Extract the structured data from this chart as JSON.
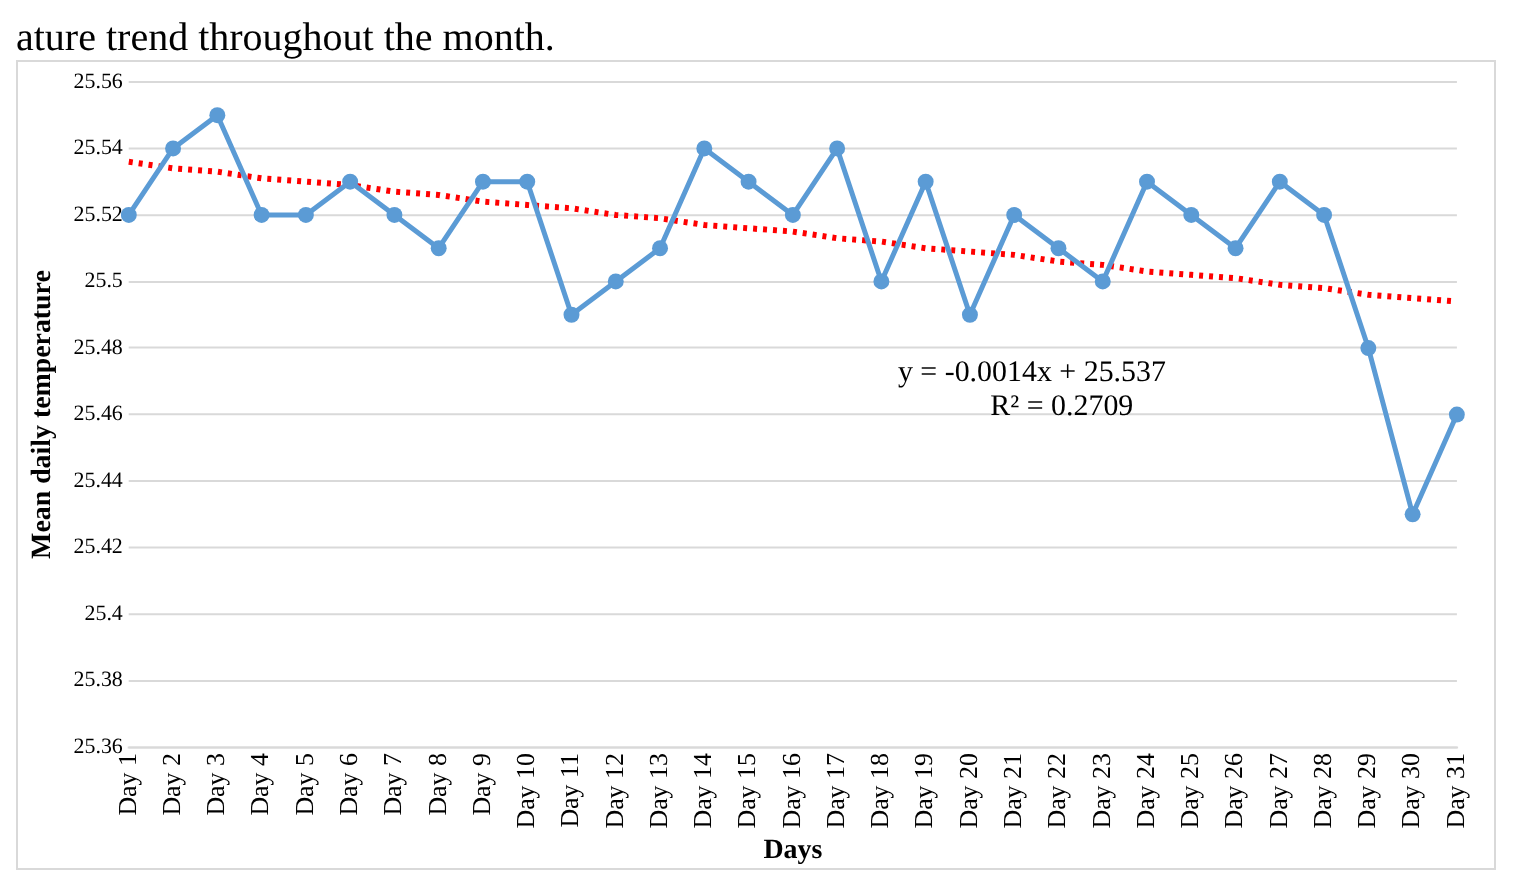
{
  "chart_data": {
    "type": "line",
    "subtitle": "ature trend throughout the month.",
    "xlabel": "Days",
    "ylabel": "Mean daily temperature",
    "categories": [
      "Day 1",
      "Day 2",
      "Day 3",
      "Day 4",
      "Day 5",
      "Day 6",
      "Day 7",
      "Day 8",
      "Day 9",
      "Day 10",
      "Day 11",
      "Day 12",
      "Day 13",
      "Day 14",
      "Day 15",
      "Day 16",
      "Day 17",
      "Day 18",
      "Day 19",
      "Day 20",
      "Day 21",
      "Day 22",
      "Day 23",
      "Day 24",
      "Day 25",
      "Day 26",
      "Day 27",
      "Day 28",
      "Day 29",
      "Day 30",
      "Day 31"
    ],
    "series": [
      {
        "color": "#5b9bd5",
        "marker": "circle",
        "line_style": "solid",
        "values": [
          25.52,
          25.54,
          25.55,
          25.52,
          25.52,
          25.53,
          25.52,
          25.51,
          25.53,
          25.53,
          25.49,
          25.5,
          25.51,
          25.54,
          25.53,
          25.52,
          25.54,
          25.5,
          25.53,
          25.49,
          25.52,
          25.51,
          25.5,
          25.53,
          25.52,
          25.51,
          25.53,
          25.52,
          25.48,
          25.43,
          25.46
        ]
      },
      {
        "type": "line",
        "color": "#ff0000",
        "marker": "none",
        "line_style": "dotted",
        "values": [
          25.536,
          25.534,
          25.533,
          25.531,
          25.53,
          25.529,
          25.527,
          25.526,
          25.524,
          25.523,
          25.522,
          25.52,
          25.519,
          25.517,
          25.516,
          25.515,
          25.513,
          25.512,
          25.51,
          25.509,
          25.508,
          25.506,
          25.505,
          25.503,
          25.502,
          25.501,
          25.499,
          25.498,
          25.496,
          25.495,
          25.494
        ]
      }
    ],
    "annotations": [
      "y = -0.0014x + 25.537",
      "R² = 0.2709"
    ],
    "ylim": [
      25.36,
      25.56
    ],
    "yticks": [
      25.36,
      25.38,
      25.4,
      25.42,
      25.44,
      25.46,
      25.48,
      25.5,
      25.52,
      25.54,
      25.56
    ],
    "grid": "y",
    "legend": false
  }
}
